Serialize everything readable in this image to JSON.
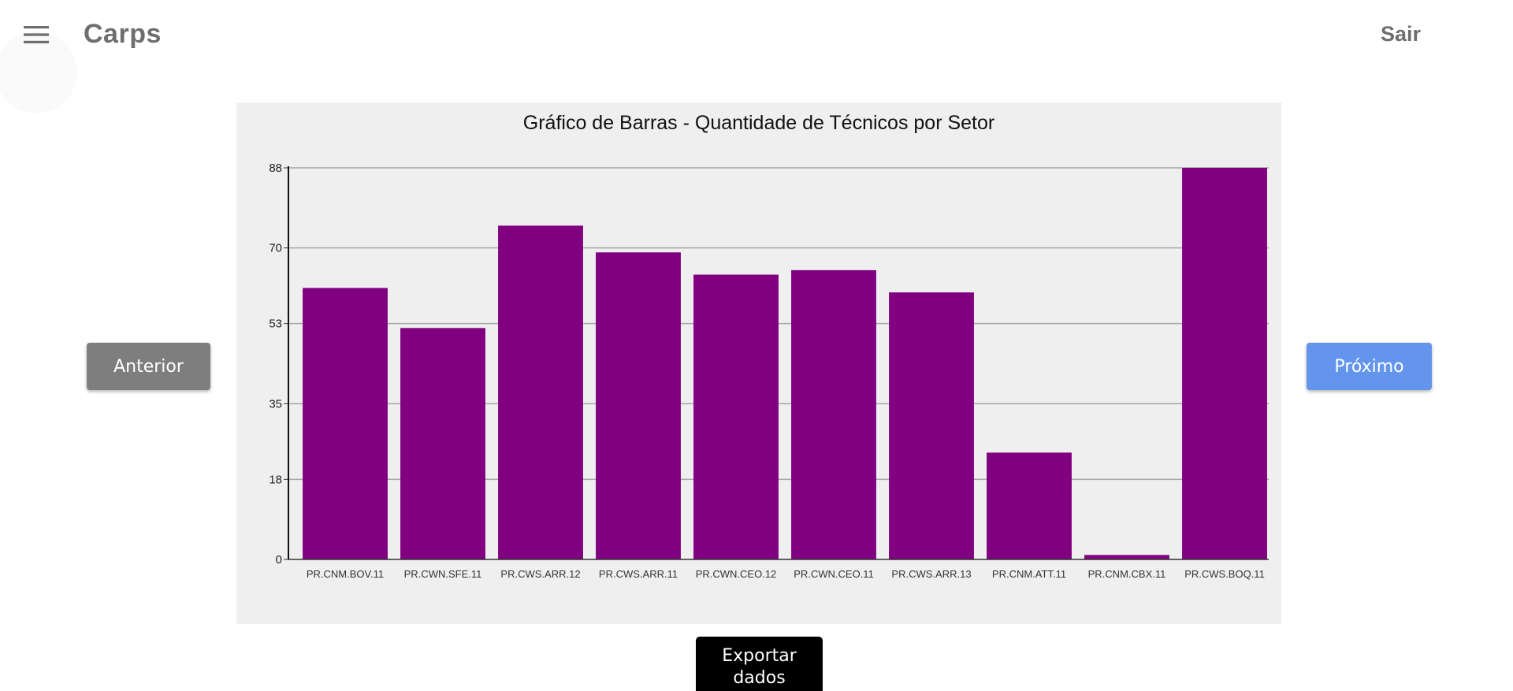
{
  "app": {
    "title": "Carps",
    "logout_label": "Sair",
    "menu_icon": "menu-icon"
  },
  "nav": {
    "prev_label": "Anterior",
    "next_label": "Próximo",
    "export_label": "Exportar dados"
  },
  "colors": {
    "bar": "#800080",
    "prev_button": "#7e7e7e",
    "next_button": "#6495ed",
    "export_button": "#000000",
    "chart_background": "#efefef",
    "gridline": "#a6a6a6"
  },
  "chart_data": {
    "type": "bar",
    "title": "Gráfico de Barras - Quantidade de Técnicos por Setor",
    "xlabel": "",
    "ylabel": "",
    "categories": [
      "PR.CNM.BOV.11",
      "PR.CWN.SFE.11",
      "PR.CWS.ARR.12",
      "PR.CWS.ARR.11",
      "PR.CWN.CEO.12",
      "PR.CWN.CEO.11",
      "PR.CWS.ARR.13",
      "PR.CNM.ATT.11",
      "PR.CNM.CBX.11",
      "PR.CWS.BOQ.11"
    ],
    "values": [
      61,
      52,
      75,
      69,
      64,
      65,
      60,
      24,
      1,
      88
    ],
    "yticks": [
      0,
      18,
      35,
      53,
      70,
      88
    ],
    "ylim": [
      0,
      88
    ],
    "grid": true,
    "legend": "none"
  }
}
